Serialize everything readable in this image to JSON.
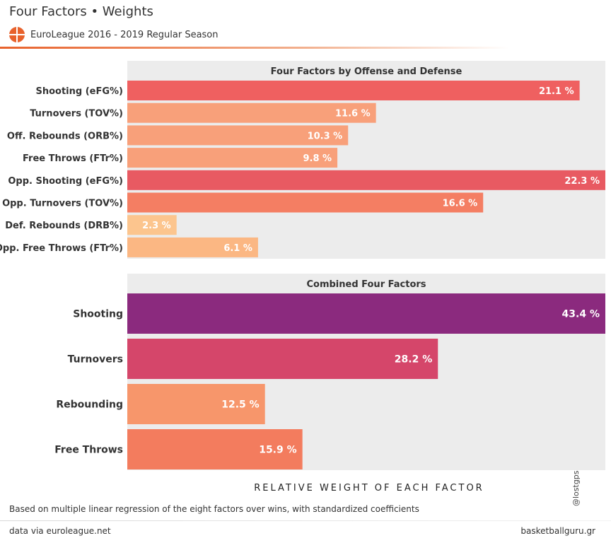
{
  "header": {
    "title": "Four Factors • Weights",
    "subtitle": "EuroLeague 2016 - 2019 Regular Season",
    "logo_icon": "euroleague-logo-icon",
    "accent_color": "#e8622c"
  },
  "chart_data": [
    {
      "type": "bar",
      "orientation": "horizontal",
      "title": "Four Factors by Offense and Defense",
      "categories": [
        "Shooting (eFG%)",
        "Turnovers (TOV%)",
        "Off. Rebounds (ORB%)",
        "Free Throws (FTr%)",
        "Opp. Shooting (eFG%)",
        "Opp. Turnovers (TOV%)",
        "Def. Rebounds (DRB%)",
        "Opp. Free Throws (FTr%)"
      ],
      "values": [
        21.1,
        11.6,
        10.3,
        9.8,
        22.3,
        16.6,
        2.3,
        6.1
      ],
      "labels": [
        "21.1 %",
        "11.6 %",
        "10.3 %",
        "9.8 %",
        "22.3 %",
        "16.6 %",
        "2.3 %",
        "6.1 %"
      ],
      "colors": [
        "#ef6060",
        "#f8a07a",
        "#f8a07a",
        "#f8a07a",
        "#e85a62",
        "#f47e63",
        "#fcc58e",
        "#fbb783"
      ],
      "xlim": [
        0,
        22.3
      ],
      "grid": false
    },
    {
      "type": "bar",
      "orientation": "horizontal",
      "title": "Combined Four Factors",
      "categories": [
        "Shooting",
        "Turnovers",
        "Rebounding",
        "Free Throws"
      ],
      "values": [
        43.4,
        28.2,
        12.5,
        15.9
      ],
      "labels": [
        "43.4 %",
        "28.2 %",
        "12.5 %",
        "15.9 %"
      ],
      "colors": [
        "#8b2a7e",
        "#d5466a",
        "#f7966b",
        "#f37c5e"
      ],
      "xlim": [
        0,
        43.4
      ],
      "grid": false
    }
  ],
  "axis_title": "RELATIVE WEIGHT OF EACH FACTOR",
  "note": "Based on multiple linear regression of the eight factors over wins, with standardized coefficients",
  "footer": {
    "source": "data via euroleague.net",
    "site": "basketballguru.gr",
    "handle": "@lostgps"
  }
}
